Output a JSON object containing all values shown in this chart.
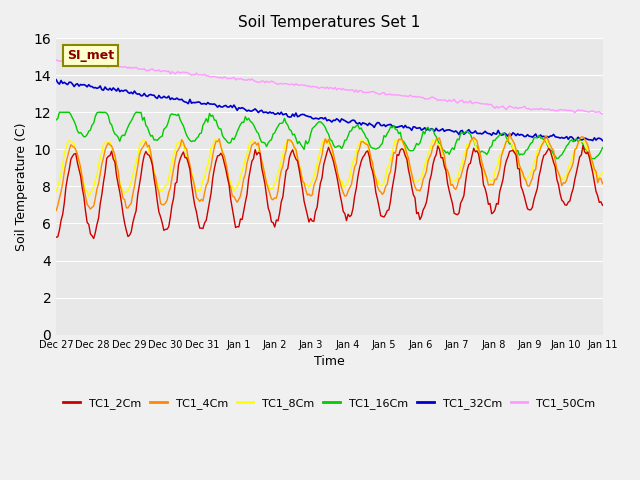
{
  "title": "Soil Temperatures Set 1",
  "xlabel": "Time",
  "ylabel": "Soil Temperature (C)",
  "ylim": [
    0,
    16
  ],
  "yticks": [
    0,
    2,
    4,
    6,
    8,
    10,
    12,
    14,
    16
  ],
  "annotation_text": "SI_met",
  "background_color": "#e8e8e8",
  "series_colors": {
    "TC1_2Cm": "#cc0000",
    "TC1_4Cm": "#ff8800",
    "TC1_8Cm": "#ffff00",
    "TC1_16Cm": "#00cc00",
    "TC1_32Cm": "#0000cc",
    "TC1_50Cm": "#ff99ff"
  },
  "x_tick_labels": [
    "Dec 27",
    "Dec 28",
    "Dec 29",
    "Dec 30",
    "Dec 31",
    "Jan 1",
    "Jan 2",
    "Jan 3",
    "Jan 4",
    "Jan 5",
    "Jan 6",
    "Jan 7",
    "Jan 8",
    "Jan 9",
    "Jan 10",
    "Jan 11"
  ],
  "n_points": 336
}
